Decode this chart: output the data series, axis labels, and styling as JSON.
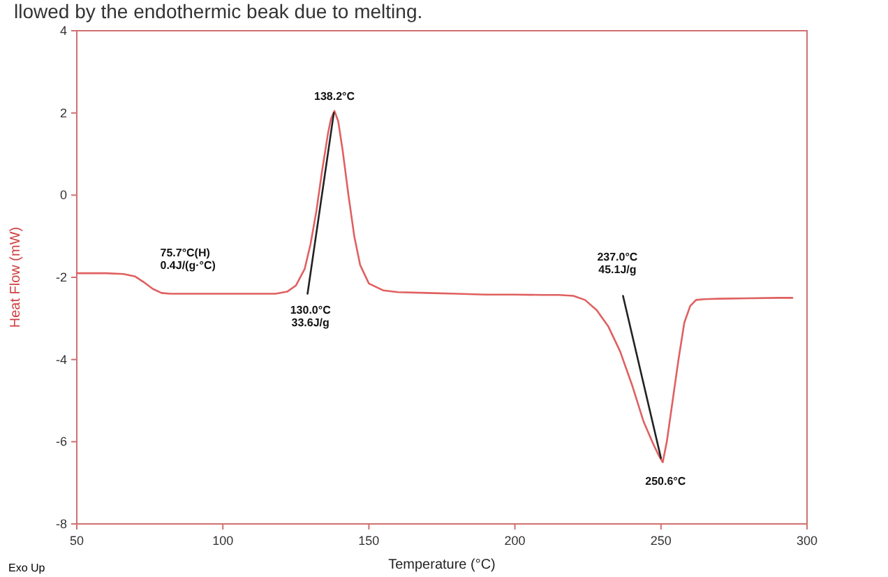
{
  "chart_data": {
    "type": "line",
    "title": "llowed by the endothermic beak due to melting.",
    "xlabel": "Temperature (°C)",
    "ylabel": "Heat Flow (mW)",
    "xlim": [
      50,
      300
    ],
    "ylim": [
      -8,
      4
    ],
    "xticks": [
      50,
      100,
      150,
      200,
      250,
      300
    ],
    "yticks": [
      -8,
      -6,
      -4,
      -2,
      0,
      2,
      4
    ],
    "grid": false,
    "marker": "none",
    "line_style": "solid",
    "series": [
      {
        "color": "#e06060",
        "x": [
          50,
          60,
          66,
          70,
          73,
          76,
          79,
          82,
          90,
          100,
          110,
          118,
          122,
          125,
          128,
          130,
          132,
          134,
          136,
          137,
          138.2,
          139.5,
          141,
          143,
          145,
          147,
          150,
          155,
          160,
          170,
          180,
          190,
          200,
          210,
          215,
          220,
          224,
          228,
          232,
          236,
          240,
          244,
          247,
          249,
          250.6,
          252,
          254,
          256,
          258,
          260,
          262,
          265,
          270,
          280,
          290,
          295
        ],
        "values": [
          -1.9,
          -1.9,
          -1.92,
          -1.98,
          -2.12,
          -2.28,
          -2.38,
          -2.4,
          -2.4,
          -2.4,
          -2.4,
          -2.4,
          -2.35,
          -2.2,
          -1.8,
          -1.2,
          -0.4,
          0.6,
          1.5,
          1.85,
          2.05,
          1.8,
          1.1,
          0.0,
          -1.0,
          -1.7,
          -2.15,
          -2.32,
          -2.36,
          -2.38,
          -2.4,
          -2.42,
          -2.42,
          -2.43,
          -2.43,
          -2.45,
          -2.55,
          -2.8,
          -3.2,
          -3.8,
          -4.6,
          -5.5,
          -6.0,
          -6.3,
          -6.5,
          -6.0,
          -5.0,
          -4.0,
          -3.1,
          -2.7,
          -2.55,
          -2.53,
          -2.52,
          -2.51,
          -2.5,
          -2.5
        ]
      },
      {
        "color": "#222222",
        "x": [
          129,
          138
        ],
        "values": [
          -2.4,
          2.0
        ]
      },
      {
        "color": "#222222",
        "x": [
          237,
          250
        ],
        "values": [
          -2.45,
          -6.4
        ]
      }
    ],
    "annotations": [
      {
        "text": "138.2°C",
        "x": 138.2,
        "y": 2.05
      },
      {
        "text": "130.0°C\n33.6J/g",
        "x": 130,
        "y": -2.4
      },
      {
        "text": "75.7°C(H)\n0.4J/(g·°C)",
        "x": 75.7,
        "y": -2.2
      },
      {
        "text": "237.0°C\n45.1J/g",
        "x": 237,
        "y": -2.45
      },
      {
        "text": "250.6°C",
        "x": 250.6,
        "y": -6.5
      },
      "Exo Up"
    ]
  }
}
